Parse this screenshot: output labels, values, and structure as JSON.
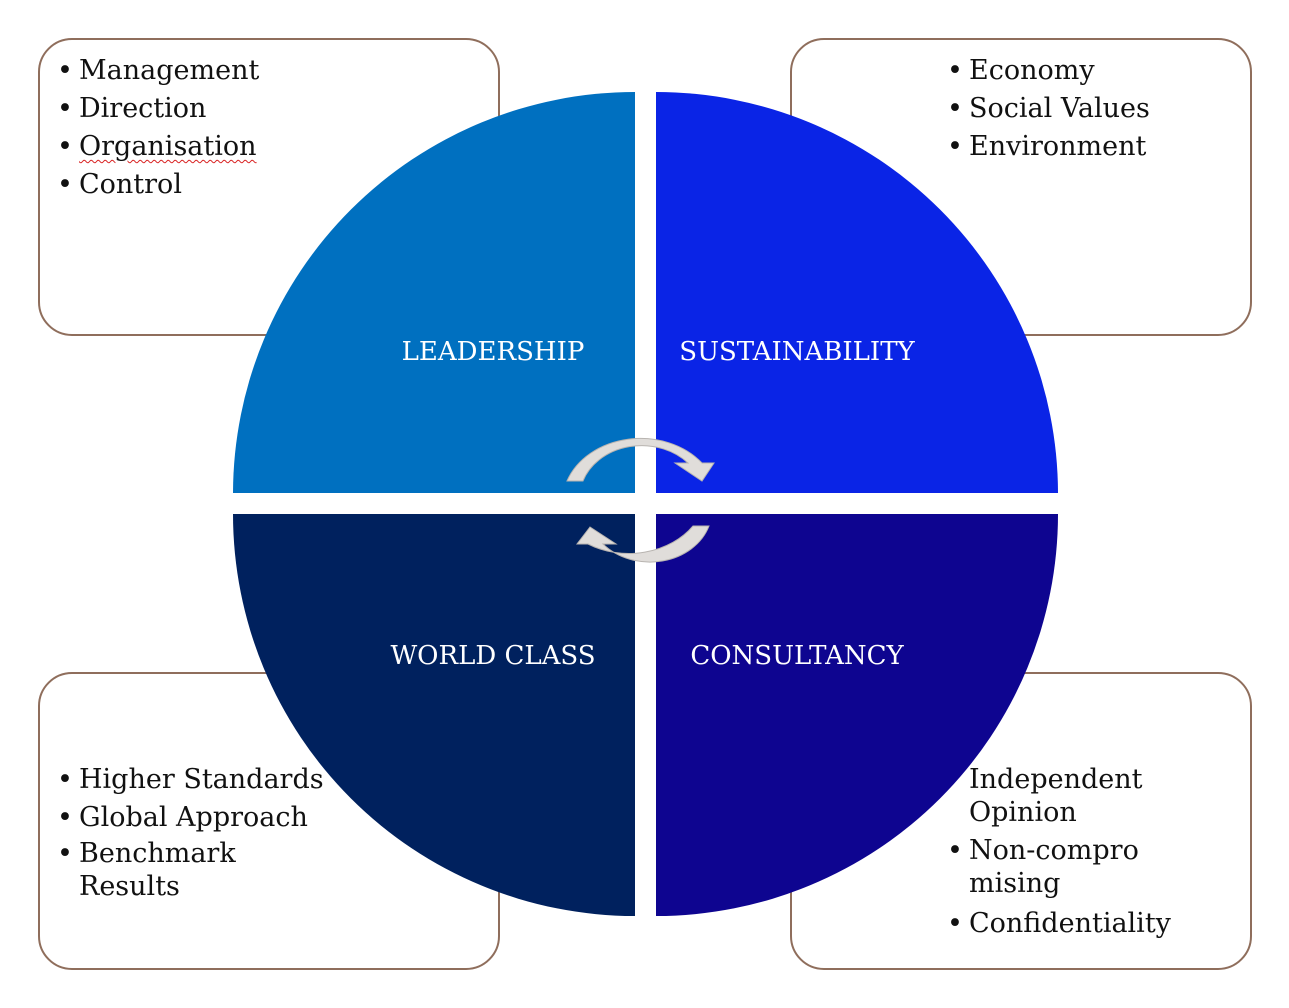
{
  "quadrants": {
    "leadership": {
      "label": "LEADERSHIP",
      "color": "#0070c0"
    },
    "sustainability": {
      "label": "SUSTAINABILITY",
      "color": "#0a24e6"
    },
    "world_class": {
      "label": "WORLD CLASS",
      "color": "#00215e"
    },
    "consultancy": {
      "label": "CONSULTANCY",
      "color": "#0e0590"
    }
  },
  "boxes": {
    "top_left": {
      "items": [
        "Management",
        "Direction",
        "Organisation",
        "Control"
      ]
    },
    "top_right": {
      "items": [
        "Economy",
        "Social Values",
        "Environment"
      ]
    },
    "bottom_left": {
      "items": [
        "Higher Standards",
        "Global Approach",
        "Benchmark Results"
      ]
    },
    "bottom_right": {
      "items": [
        "Independent Opinion",
        "Non-compromising",
        "Confidentiality"
      ]
    }
  },
  "colors": {
    "box_border": "#8f6e5c",
    "cycle_arrow": "#e0ddda"
  }
}
